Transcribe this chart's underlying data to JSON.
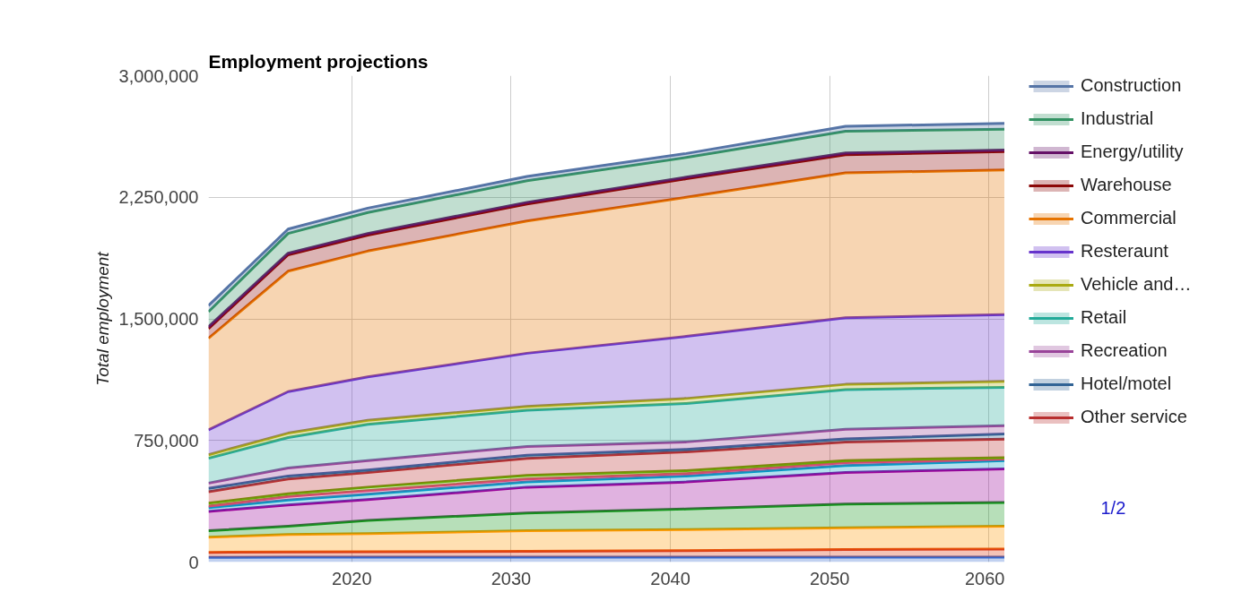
{
  "chart_data": {
    "type": "area",
    "title": "Employment projections",
    "ylabel": "Total employment",
    "stacked": true,
    "x": [
      2011,
      2016,
      2021,
      2031,
      2041,
      2051,
      2061
    ],
    "xlim": [
      2011,
      2061
    ],
    "xticks": [
      2020,
      2030,
      2040,
      2050,
      2060
    ],
    "ylim": [
      0,
      3000000
    ],
    "yticks": [
      {
        "value": 0,
        "label": "0"
      },
      {
        "value": 750000,
        "label": "750,000"
      },
      {
        "value": 1500000,
        "label": "1,500,000"
      },
      {
        "value": 2250000,
        "label": "2,250,000"
      },
      {
        "value": 3000000,
        "label": "3,000,000"
      }
    ],
    "grid": true,
    "legend": "right",
    "annotations": [
      "1/2"
    ],
    "series": [
      {
        "color": "#3366cc",
        "values": [
          29000,
          30000,
          30000,
          30000,
          30000,
          30000,
          30000
        ]
      },
      {
        "color": "#dc3912",
        "values": [
          31000,
          32000,
          33000,
          36000,
          40000,
          48000,
          50000
        ]
      },
      {
        "color": "#ff9900",
        "values": [
          93000,
          108000,
          112000,
          127000,
          130000,
          134000,
          141000
        ]
      },
      {
        "color": "#109618",
        "values": [
          40000,
          51000,
          82000,
          110000,
          127000,
          146000,
          146000
        ]
      },
      {
        "color": "#990099",
        "values": [
          119000,
          131000,
          128000,
          159000,
          167000,
          195000,
          208000
        ]
      },
      {
        "color": "#0099c6",
        "values": [
          23000,
          31000,
          33000,
          32000,
          37000,
          42000,
          51000
        ]
      },
      {
        "color": "#dd4477",
        "values": [
          10000,
          22000,
          22000,
          19000,
          15000,
          18000,
          9000
        ]
      },
      {
        "color": "#66aa00",
        "values": [
          18000,
          16000,
          22000,
          22000,
          18000,
          13000,
          9000
        ]
      },
      {
        "name": "Other service",
        "color": "#b82e2e",
        "values": [
          71000,
          92000,
          91000,
          105000,
          116000,
          115000,
          115000
        ]
      },
      {
        "name": "Hotel/motel",
        "color": "#316395",
        "values": [
          20000,
          18000,
          15000,
          19000,
          15000,
          18000,
          31000
        ]
      },
      {
        "name": "Recreation",
        "color": "#994499",
        "values": [
          33000,
          49000,
          58000,
          54000,
          46000,
          60000,
          51000
        ]
      },
      {
        "name": "Retail",
        "color": "#22aa99",
        "values": [
          153000,
          188000,
          224000,
          223000,
          237000,
          245000,
          237000
        ]
      },
      {
        "name": "Vehicle and…",
        "color": "#aaaa11",
        "values": [
          22000,
          27000,
          24000,
          24000,
          31000,
          32000,
          37000
        ]
      },
      {
        "name": "Resteraunt",
        "color": "#6633cc",
        "values": [
          153000,
          256000,
          268000,
          328000,
          383000,
          411000,
          411000
        ]
      },
      {
        "name": "Commercial",
        "color": "#e67300",
        "values": [
          565000,
          743000,
          776000,
          816000,
          858000,
          894000,
          892000
        ]
      },
      {
        "name": "Warehouse",
        "color": "#8b0707",
        "values": [
          60000,
          101000,
          99000,
          105000,
          114000,
          112000,
          114000
        ]
      },
      {
        "name": "Energy/utility",
        "color": "#651067",
        "values": [
          11000,
          10000,
          10000,
          10000,
          10000,
          10000,
          10000
        ]
      },
      {
        "name": "Industrial",
        "color": "#329262",
        "values": [
          93000,
          122000,
          129000,
          133000,
          122000,
          134000,
          128000
        ]
      },
      {
        "name": "Construction",
        "color": "#5574a6",
        "values": [
          38000,
          27000,
          27000,
          26000,
          24000,
          31000,
          36000
        ]
      }
    ]
  }
}
